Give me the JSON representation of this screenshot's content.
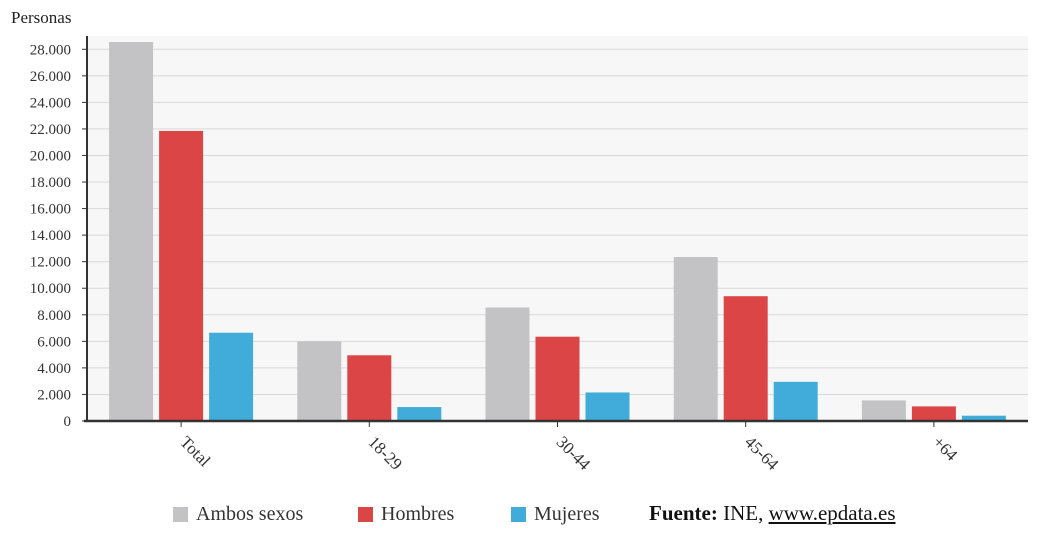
{
  "chart_data": {
    "type": "bar",
    "ylabel": "Personas",
    "categories": [
      "Total",
      "18-29",
      "30-44",
      "45-64",
      "+64"
    ],
    "series": [
      {
        "name": "Ambos sexos",
        "color": "#c3c3c5",
        "values": [
          28550,
          6000,
          8550,
          12350,
          1550
        ]
      },
      {
        "name": "Hombres",
        "color": "#db4546",
        "values": [
          21850,
          4950,
          6350,
          9400,
          1100
        ]
      },
      {
        "name": "Mujeres",
        "color": "#41acd9",
        "values": [
          6650,
          1050,
          2150,
          2950,
          400
        ]
      }
    ],
    "ylim": [
      0,
      29000
    ],
    "yticks": [
      0,
      2000,
      4000,
      6000,
      8000,
      10000,
      12000,
      14000,
      16000,
      18000,
      20000,
      22000,
      24000,
      26000,
      28000
    ],
    "ytick_labels": [
      "0",
      "2.000",
      "4.000",
      "6.000",
      "8.000",
      "10.000",
      "12.000",
      "14.000",
      "16.000",
      "18.000",
      "20.000",
      "22.000",
      "24.000",
      "26.000",
      "28.000"
    ],
    "grid": true,
    "legend_position": "bottom"
  },
  "source": {
    "label": "Fuente:",
    "text": " INE, ",
    "link": "www.epdata.es"
  }
}
